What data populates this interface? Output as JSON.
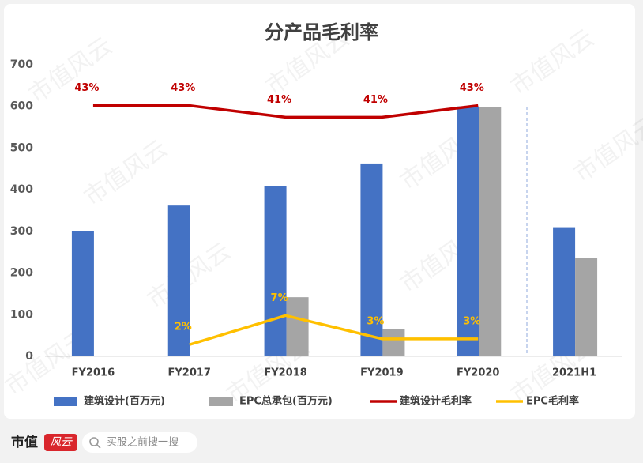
{
  "chart_data": {
    "type": "bar",
    "title": "分产品毛利率",
    "categories": [
      "FY2016",
      "FY2017",
      "FY2018",
      "FY2019",
      "FY2020",
      "2021H1"
    ],
    "series": [
      {
        "name": "建筑设计(百万元)",
        "color": "#4472c4",
        "values": [
          300,
          362,
          408,
          463,
          600,
          310
        ]
      },
      {
        "name": "EPC总承包(百万元)",
        "color": "#a5a5a5",
        "values": [
          null,
          null,
          142,
          65,
          598,
          237
        ]
      },
      {
        "name": "建筑设计毛利率",
        "type": "line",
        "axis": "y2",
        "color": "#c00000",
        "values": [
          43,
          43,
          41,
          41,
          43,
          null
        ],
        "value_labels": [
          "43%",
          "43%",
          "41%",
          "41%",
          "43%",
          null
        ]
      },
      {
        "name": "EPC毛利率",
        "type": "line",
        "axis": "y2",
        "color": "#ffc000",
        "values": [
          null,
          2,
          7,
          3,
          3,
          null
        ],
        "value_labels": [
          null,
          "2%",
          "7%",
          "3%",
          "3%",
          null
        ]
      }
    ],
    "ylim": [
      0,
      700
    ],
    "yticks": [
      0,
      100,
      200,
      300,
      400,
      500,
      600,
      700
    ],
    "y2lim": [
      0,
      50
    ],
    "grid": false,
    "legend": "bottom"
  },
  "watermark": "市值风云",
  "footer": {
    "brand": "市值",
    "brand_mark": "风云",
    "search": "买股之前搜一搜"
  }
}
